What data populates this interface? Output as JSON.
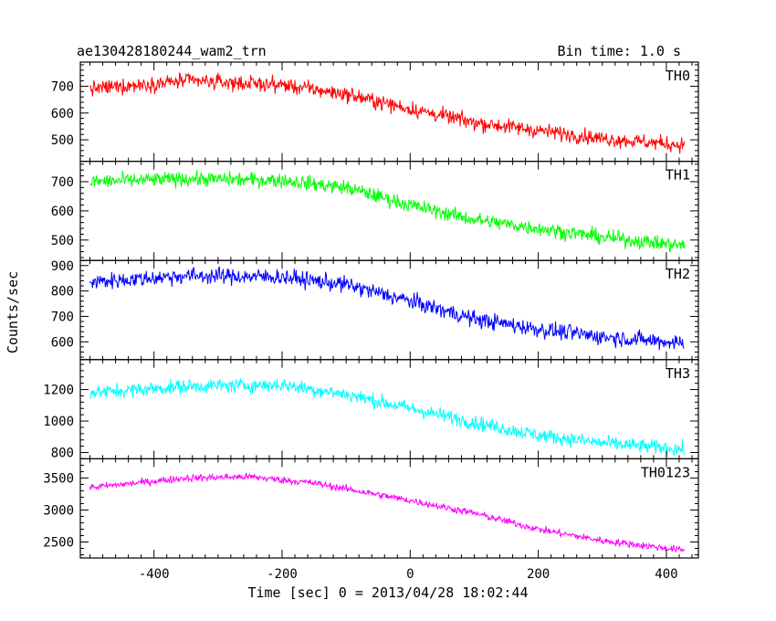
{
  "header": {
    "title": "ae130428180244_wam2_trn",
    "bin_time": "Bin time: 1.0 s"
  },
  "chart_data": {
    "type": "line",
    "xlabel": "Time [sec] 0 = 2013/04/28 18:02:44",
    "ylabel": "Counts/sec",
    "xlim": [
      -515,
      450
    ],
    "x_ticks": [
      -400,
      -200,
      0,
      200,
      400
    ],
    "x_range": [
      -500,
      428
    ],
    "grid": false,
    "panels": [
      {
        "name": "TH0",
        "color": "#ff0000",
        "ylim": [
          420,
          790
        ],
        "y_ticks": [
          500,
          600,
          700
        ],
        "trend": [
          [
            -500,
            690
          ],
          [
            -350,
            720
          ],
          [
            -200,
            705
          ],
          [
            -100,
            670
          ],
          [
            0,
            615
          ],
          [
            100,
            565
          ],
          [
            200,
            535
          ],
          [
            300,
            505
          ],
          [
            428,
            480
          ]
        ],
        "noise": 28
      },
      {
        "name": "TH1",
        "color": "#00ff00",
        "ylim": [
          430,
          770
        ],
        "y_ticks": [
          500,
          600,
          700
        ],
        "trend": [
          [
            -500,
            700
          ],
          [
            -350,
            710
          ],
          [
            -200,
            705
          ],
          [
            -100,
            680
          ],
          [
            0,
            620
          ],
          [
            100,
            570
          ],
          [
            200,
            540
          ],
          [
            300,
            510
          ],
          [
            428,
            480
          ]
        ],
        "noise": 25
      },
      {
        "name": "TH2",
        "color": "#0000ff",
        "ylim": [
          530,
          920
        ],
        "y_ticks": [
          600,
          700,
          800,
          900
        ],
        "trend": [
          [
            -500,
            835
          ],
          [
            -350,
            860
          ],
          [
            -200,
            855
          ],
          [
            -100,
            825
          ],
          [
            0,
            760
          ],
          [
            100,
            690
          ],
          [
            200,
            650
          ],
          [
            300,
            620
          ],
          [
            428,
            595
          ]
        ],
        "noise": 32
      },
      {
        "name": "TH3",
        "color": "#00ffff",
        "ylim": [
          760,
          1390
        ],
        "y_ticks": [
          800,
          1000,
          1200
        ],
        "trend": [
          [
            -500,
            1180
          ],
          [
            -350,
            1220
          ],
          [
            -200,
            1230
          ],
          [
            -100,
            1170
          ],
          [
            0,
            1080
          ],
          [
            100,
            990
          ],
          [
            200,
            910
          ],
          [
            300,
            860
          ],
          [
            428,
            820
          ]
        ],
        "noise": 45
      },
      {
        "name": "TH0123",
        "color": "#ff00ff",
        "ylim": [
          2250,
          3800
        ],
        "y_ticks": [
          2500,
          3000,
          3500
        ],
        "trend": [
          [
            -500,
            3350
          ],
          [
            -350,
            3500
          ],
          [
            -250,
            3520
          ],
          [
            -150,
            3420
          ],
          [
            0,
            3150
          ],
          [
            100,
            2950
          ],
          [
            200,
            2700
          ],
          [
            300,
            2520
          ],
          [
            428,
            2370
          ]
        ],
        "noise": 55
      }
    ]
  }
}
